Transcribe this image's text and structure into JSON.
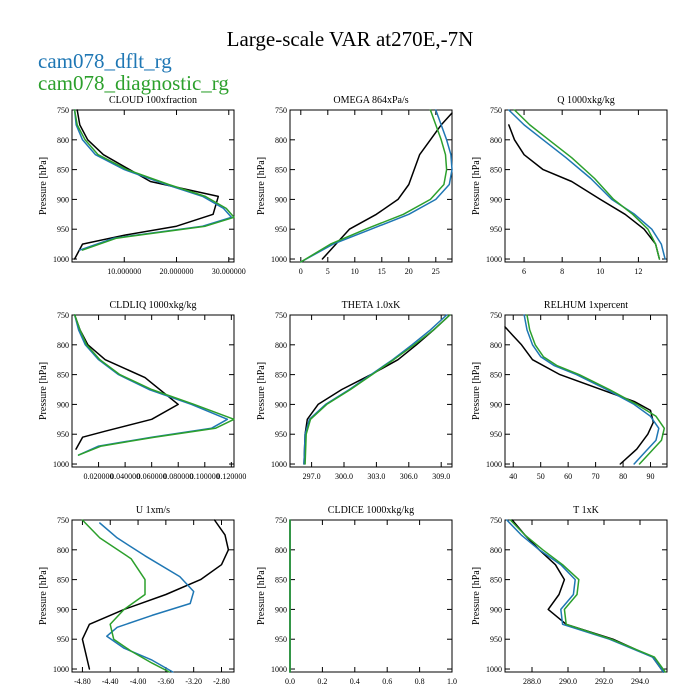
{
  "figure": {
    "title": "Large-scale VAR at270E,-7N"
  },
  "legend": [
    {
      "label": "cam078_dflt_rg",
      "color": "#1f77b4"
    },
    {
      "label": "cam078_diagnostic_rg",
      "color": "#2ca02c"
    }
  ],
  "black_series_color": "#000000",
  "chart_data": [
    {
      "type": "line",
      "title": "CLOUD 100xfraction",
      "ylabel": "Pressure [hPa]",
      "xlim": [
        0,
        31
      ],
      "ylim": [
        1005,
        750
      ],
      "xticks": [
        10,
        20,
        30
      ],
      "xtick_labels": [
        "10.000000",
        "20.000000",
        "30.000000"
      ],
      "yticks": [
        750,
        800,
        850,
        900,
        950,
        1000
      ],
      "ytick_labels": [
        "750",
        "800",
        "850",
        "900",
        "950",
        "1000"
      ],
      "series": [
        {
          "color": "#000000",
          "x": [
            1,
            1.5,
            3,
            6,
            15,
            28,
            27,
            20,
            10,
            2,
            0.5
          ],
          "y": [
            750,
            775,
            800,
            825,
            870,
            895,
            925,
            945,
            960,
            975,
            1000
          ]
        },
        {
          "color": "#1f77b4",
          "x": [
            0.5,
            0.8,
            2,
            4.5,
            10,
            18,
            25,
            29,
            30.5,
            25,
            8,
            1.5
          ],
          "y": [
            750,
            775,
            800,
            825,
            850,
            875,
            895,
            915,
            930,
            945,
            965,
            985
          ]
        },
        {
          "color": "#2ca02c",
          "x": [
            0.5,
            1,
            2.5,
            5,
            10.5,
            18.5,
            25.5,
            29.5,
            31,
            25.5,
            8.5,
            2
          ],
          "y": [
            750,
            775,
            800,
            825,
            850,
            875,
            895,
            915,
            930,
            945,
            965,
            985
          ]
        }
      ]
    },
    {
      "type": "line",
      "title": "OMEGA 864xPa/s",
      "ylabel": "Pressure [hPa]",
      "xlim": [
        -2,
        28
      ],
      "ylim": [
        1005,
        750
      ],
      "xticks": [
        0,
        5,
        10,
        15,
        20,
        25
      ],
      "xtick_labels": [
        "0",
        "5",
        "10",
        "15",
        "20",
        "25"
      ],
      "yticks": [
        750,
        800,
        850,
        900,
        950,
        1000
      ],
      "ytick_labels": [
        "750",
        "800",
        "850",
        "900",
        "950",
        "1000"
      ],
      "series": [
        {
          "color": "#000000",
          "x": [
            28,
            26,
            24,
            22,
            21,
            20,
            18,
            14,
            9,
            4
          ],
          "y": [
            755,
            775,
            800,
            825,
            850,
            875,
            900,
            925,
            950,
            1000
          ]
        },
        {
          "color": "#1f77b4",
          "x": [
            25,
            26,
            27,
            27.8,
            28,
            27.5,
            25,
            20,
            13,
            6,
            0
          ],
          "y": [
            750,
            775,
            800,
            825,
            850,
            875,
            900,
            925,
            950,
            975,
            1005
          ]
        },
        {
          "color": "#2ca02c",
          "x": [
            24,
            25,
            26,
            26.8,
            27,
            26.5,
            24,
            19,
            12,
            5.5,
            0
          ],
          "y": [
            750,
            775,
            800,
            825,
            850,
            875,
            900,
            925,
            950,
            975,
            1005
          ]
        }
      ]
    },
    {
      "type": "line",
      "title": "Q 1000xkg/kg",
      "ylabel": "Pressure [hPa]",
      "xlim": [
        5,
        13.5
      ],
      "ylim": [
        1005,
        750
      ],
      "xticks": [
        6,
        8,
        10,
        12
      ],
      "xtick_labels": [
        "6",
        "8",
        "10",
        "12"
      ],
      "yticks": [
        750,
        800,
        850,
        900,
        950,
        1000
      ],
      "ytick_labels": [
        "750",
        "800",
        "850",
        "900",
        "950",
        "1000"
      ],
      "series": [
        {
          "color": "#000000",
          "x": [
            5.2,
            5.5,
            6,
            7,
            8.5,
            10,
            11.3,
            12.3,
            12.9,
            13.1
          ],
          "y": [
            775,
            800,
            825,
            850,
            870,
            900,
            925,
            950,
            975,
            1000
          ]
        },
        {
          "color": "#1f77b4",
          "x": [
            5.2,
            6,
            7,
            8.2,
            9.5,
            10.6,
            11.8,
            12.7,
            13.2,
            13.4
          ],
          "y": [
            750,
            775,
            800,
            830,
            865,
            900,
            925,
            950,
            975,
            1000
          ]
        },
        {
          "color": "#2ca02c",
          "x": [
            5.5,
            6.3,
            7.3,
            8.5,
            9.7,
            10.7,
            11.7,
            12.5,
            12.9,
            13.1
          ],
          "y": [
            750,
            775,
            800,
            830,
            865,
            900,
            925,
            950,
            975,
            1000
          ]
        }
      ]
    },
    {
      "type": "line",
      "title": "CLDLIQ 1000xkg/kg",
      "ylabel": "Pressure [hPa]",
      "xlim": [
        0,
        0.122
      ],
      "ylim": [
        1005,
        750
      ],
      "xticks": [
        0.02,
        0.04,
        0.06,
        0.08,
        0.1,
        0.12
      ],
      "xtick_labels": [
        "0.020000",
        "0.040000",
        "0.060000",
        "0.080000",
        "0.100000",
        "0.120000"
      ],
      "yticks": [
        750,
        800,
        850,
        900,
        950,
        1000
      ],
      "ytick_labels": [
        "750",
        "800",
        "850",
        "900",
        "950",
        "1000"
      ],
      "series": [
        {
          "color": "#000000",
          "x": [
            0.002,
            0.006,
            0.012,
            0.025,
            0.055,
            0.08,
            0.06,
            0.025,
            0.008,
            0.003
          ],
          "y": [
            750,
            775,
            800,
            825,
            855,
            900,
            925,
            945,
            955,
            975
          ]
        },
        {
          "color": "#1f77b4",
          "x": [
            0.002,
            0.005,
            0.01,
            0.02,
            0.035,
            0.058,
            0.09,
            0.117,
            0.105,
            0.06,
            0.02,
            0.005
          ],
          "y": [
            750,
            775,
            800,
            825,
            850,
            875,
            900,
            925,
            940,
            955,
            970,
            985
          ]
        },
        {
          "color": "#2ca02c",
          "x": [
            0.002,
            0.006,
            0.011,
            0.021,
            0.036,
            0.06,
            0.092,
            0.122,
            0.108,
            0.062,
            0.022,
            0.005
          ],
          "y": [
            750,
            775,
            800,
            825,
            850,
            875,
            900,
            925,
            940,
            955,
            970,
            985
          ]
        }
      ]
    },
    {
      "type": "line",
      "title": "THETA 1.0xK",
      "ylabel": "Pressure [hPa]",
      "xlim": [
        295,
        310
      ],
      "ylim": [
        1005,
        750
      ],
      "xticks": [
        297,
        300,
        303,
        306,
        309
      ],
      "xtick_labels": [
        "297.0",
        "300.0",
        "303.0",
        "306.0",
        "309.0"
      ],
      "yticks": [
        750,
        800,
        850,
        900,
        950,
        1000
      ],
      "ytick_labels": [
        "750",
        "800",
        "850",
        "900",
        "950",
        "1000"
      ],
      "series": [
        {
          "color": "#000000",
          "x": [
            309.8,
            308.3,
            306.7,
            305,
            302.5,
            299.8,
            297.6,
            296.6,
            296.4,
            296.3
          ],
          "y": [
            750,
            775,
            800,
            825,
            850,
            875,
            900,
            925,
            950,
            1000
          ]
        },
        {
          "color": "#1f77b4",
          "x": [
            309.5,
            308,
            306.3,
            304.5,
            302.5,
            300.5,
            298.3,
            296.8,
            296.4,
            296.3
          ],
          "y": [
            750,
            775,
            800,
            825,
            850,
            875,
            900,
            925,
            950,
            1000
          ]
        },
        {
          "color": "#2ca02c",
          "x": [
            309.8,
            308.3,
            306.5,
            304.6,
            302.6,
            300.6,
            298.4,
            296.9,
            296.5,
            296.4
          ],
          "y": [
            750,
            775,
            800,
            825,
            850,
            875,
            900,
            925,
            950,
            1000
          ]
        }
      ]
    },
    {
      "type": "line",
      "title": "RELHUM 1xpercent",
      "ylabel": "Pressure [hPa]",
      "xlim": [
        37,
        96
      ],
      "ylim": [
        1005,
        750
      ],
      "xticks": [
        40,
        50,
        60,
        70,
        80,
        90
      ],
      "xtick_labels": [
        "40",
        "50",
        "60",
        "70",
        "80",
        "90"
      ],
      "yticks": [
        750,
        800,
        850,
        900,
        950,
        1000
      ],
      "ytick_labels": [
        "750",
        "800",
        "850",
        "900",
        "950",
        "1000"
      ],
      "series": [
        {
          "color": "#000000",
          "x": [
            37,
            40,
            43,
            47,
            57,
            84,
            90,
            91,
            89,
            85,
            79
          ],
          "y": [
            770,
            785,
            800,
            825,
            850,
            895,
            910,
            930,
            950,
            975,
            1000
          ]
        },
        {
          "color": "#1f77b4",
          "x": [
            44,
            45,
            47,
            50,
            55,
            63,
            74,
            84,
            90,
            93,
            92,
            88,
            84
          ],
          "y": [
            750,
            775,
            800,
            820,
            835,
            850,
            875,
            900,
            920,
            940,
            960,
            980,
            1000
          ]
        },
        {
          "color": "#2ca02c",
          "x": [
            45,
            46,
            48,
            51,
            56,
            64,
            75,
            85,
            92,
            95,
            94,
            90,
            86
          ],
          "y": [
            750,
            775,
            800,
            820,
            835,
            850,
            875,
            900,
            920,
            940,
            960,
            980,
            1000
          ]
        }
      ]
    },
    {
      "type": "line",
      "title": "U 1xm/s",
      "ylabel": "Pressure [hPa]",
      "xlim": [
        -4.95,
        -2.62
      ],
      "ylim": [
        1005,
        750
      ],
      "xticks": [
        -4.8,
        -4.4,
        -4.0,
        -3.6,
        -3.2,
        -2.8
      ],
      "xtick_labels": [
        "-4.80",
        "-4.40",
        "-4.00",
        "-3.60",
        "-3.20",
        "-2.80"
      ],
      "yticks": [
        750,
        800,
        850,
        900,
        950,
        1000
      ],
      "ytick_labels": [
        "750",
        "800",
        "850",
        "900",
        "950",
        "1000"
      ],
      "series": [
        {
          "color": "#000000",
          "x": [
            -2.9,
            -2.75,
            -2.7,
            -2.8,
            -3.1,
            -3.6,
            -4.2,
            -4.7,
            -4.8,
            -4.75,
            -4.7
          ],
          "y": [
            750,
            775,
            800,
            825,
            850,
            875,
            900,
            925,
            950,
            975,
            1000
          ]
        },
        {
          "color": "#1f77b4",
          "x": [
            -4.55,
            -4.3,
            -3.9,
            -3.4,
            -3.2,
            -3.25,
            -3.8,
            -4.3,
            -4.45,
            -4.2,
            -3.8,
            -3.5
          ],
          "y": [
            755,
            780,
            810,
            845,
            870,
            890,
            910,
            930,
            945,
            965,
            985,
            1005
          ]
        },
        {
          "color": "#2ca02c",
          "x": [
            -4.8,
            -4.55,
            -4.1,
            -3.9,
            -3.9,
            -4.2,
            -4.4,
            -4.35,
            -4.1,
            -3.8,
            -3.55
          ],
          "y": [
            750,
            780,
            815,
            850,
            875,
            900,
            925,
            950,
            970,
            990,
            1005
          ]
        }
      ]
    },
    {
      "type": "line",
      "title": "CLDICE 1000xkg/kg",
      "ylabel": "Pressure [hPa]",
      "xlim": [
        0,
        1
      ],
      "ylim": [
        1005,
        750
      ],
      "xticks": [
        0,
        0.2,
        0.4,
        0.6,
        0.8,
        1.0
      ],
      "xtick_labels": [
        "0.0",
        "0.2",
        "0.4",
        "0.6",
        "0.8",
        "1.0"
      ],
      "yticks": [
        750,
        800,
        850,
        900,
        950,
        1000
      ],
      "ytick_labels": [
        "750",
        "800",
        "850",
        "900",
        "950",
        "1000"
      ],
      "series": [
        {
          "color": "#000000",
          "x": [
            0,
            0
          ],
          "y": [
            750,
            1005
          ]
        },
        {
          "color": "#1f77b4",
          "x": [
            0,
            0
          ],
          "y": [
            750,
            1005
          ]
        },
        {
          "color": "#2ca02c",
          "x": [
            0,
            0
          ],
          "y": [
            750,
            1005
          ]
        }
      ]
    },
    {
      "type": "line",
      "title": "T 1xK",
      "ylabel": "Pressure [hPa]",
      "xlim": [
        286.5,
        295.5
      ],
      "ylim": [
        1005,
        750
      ],
      "xticks": [
        288,
        290,
        292,
        294
      ],
      "xtick_labels": [
        "288.0",
        "290.0",
        "292.0",
        "294.0"
      ],
      "yticks": [
        750,
        800,
        850,
        900,
        950,
        1000
      ],
      "ytick_labels": [
        "750",
        "800",
        "850",
        "900",
        "950",
        "1000"
      ],
      "series": [
        {
          "color": "#000000",
          "x": [
            286.9,
            287.6,
            288.4,
            289.3,
            289.8,
            289.5,
            288.9,
            289.9,
            292.5,
            294.7,
            295.3
          ],
          "y": [
            750,
            775,
            800,
            825,
            850,
            875,
            900,
            925,
            950,
            980,
            1005
          ]
        },
        {
          "color": "#1f77b4",
          "x": [
            286.6,
            287.4,
            288.4,
            289.6,
            290.4,
            290.3,
            289.6,
            289.7,
            292.3,
            294.7,
            295.3
          ],
          "y": [
            750,
            775,
            800,
            825,
            850,
            875,
            900,
            925,
            950,
            980,
            1005
          ]
        },
        {
          "color": "#2ca02c",
          "x": [
            286.8,
            287.6,
            288.6,
            289.7,
            290.6,
            290.5,
            289.8,
            289.9,
            292.4,
            294.8,
            295.4
          ],
          "y": [
            750,
            775,
            800,
            825,
            850,
            875,
            900,
            925,
            950,
            980,
            1005
          ]
        }
      ]
    }
  ]
}
